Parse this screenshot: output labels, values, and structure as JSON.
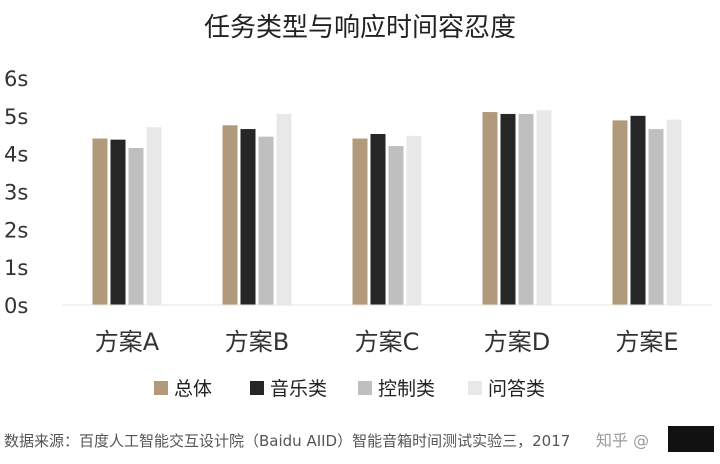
{
  "chart_data": {
    "type": "bar",
    "title": "任务类型与响应时间容忍度",
    "categories": [
      "方案A",
      "方案B",
      "方案C",
      "方案D",
      "方案E"
    ],
    "series": [
      {
        "name": "总体",
        "color": "#b09a7b",
        "values": [
          4.4,
          4.75,
          4.4,
          5.1,
          4.88
        ]
      },
      {
        "name": "音乐类",
        "color": "#262626",
        "values": [
          4.37,
          4.65,
          4.52,
          5.05,
          5.0
        ]
      },
      {
        "name": "控制类",
        "color": "#bfbfbf",
        "values": [
          4.15,
          4.45,
          4.2,
          5.05,
          4.65
        ]
      },
      {
        "name": "问答类",
        "color": "#e8e8e8",
        "values": [
          4.7,
          5.05,
          4.47,
          5.15,
          4.9
        ]
      }
    ],
    "y_ticks": [
      "0s",
      "1s",
      "2s",
      "3s",
      "4s",
      "5s",
      "6s"
    ],
    "ylim": [
      0,
      6
    ],
    "grid": false,
    "legend_position": "bottom"
  },
  "source_note": "数据来源：百度人工智能交互设计院（Baidu AIID）智能音箱时间测试实验三，2017",
  "watermark": "知乎 @"
}
